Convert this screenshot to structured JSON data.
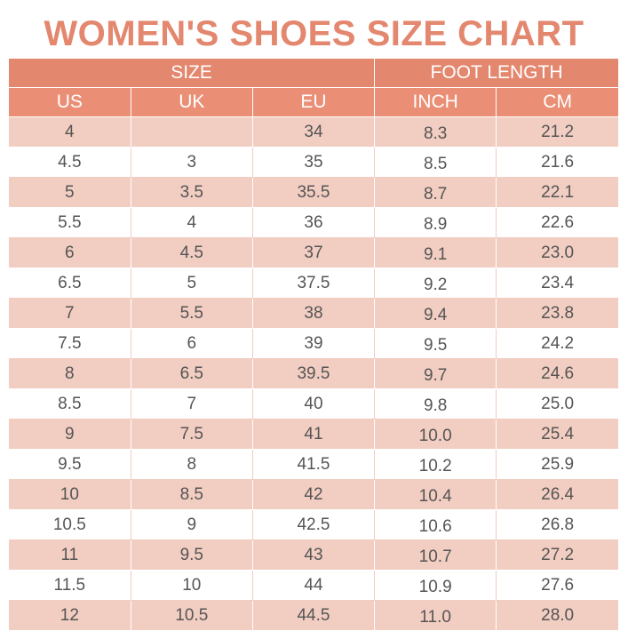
{
  "title": "WOMEN'S SHOES SIZE CHART",
  "colors": {
    "title": "#e3876e",
    "header_top": "#e3876e",
    "header_cols": "#ea8f76",
    "row_shaded": "#f2cdc1",
    "row_plain": "#ffffff",
    "cell_text": "#555555"
  },
  "groups": {
    "size": "SIZE",
    "foot_length": "FOOT LENGTH"
  },
  "columns": {
    "us": "US",
    "uk": "UK",
    "eu": "EU",
    "inch": "INCH",
    "cm": "CM"
  },
  "rows": [
    {
      "us": "4",
      "uk": "",
      "eu": "34",
      "inch": "8.3",
      "cm": "21.2"
    },
    {
      "us": "4.5",
      "uk": "3",
      "eu": "35",
      "inch": "8.5",
      "cm": "21.6"
    },
    {
      "us": "5",
      "uk": "3.5",
      "eu": "35.5",
      "inch": "8.7",
      "cm": "22.1"
    },
    {
      "us": "5.5",
      "uk": "4",
      "eu": "36",
      "inch": "8.9",
      "cm": "22.6"
    },
    {
      "us": "6",
      "uk": "4.5",
      "eu": "37",
      "inch": "9.1",
      "cm": "23.0"
    },
    {
      "us": "6.5",
      "uk": "5",
      "eu": "37.5",
      "inch": "9.2",
      "cm": "23.4"
    },
    {
      "us": "7",
      "uk": "5.5",
      "eu": "38",
      "inch": "9.4",
      "cm": "23.8"
    },
    {
      "us": "7.5",
      "uk": "6",
      "eu": "39",
      "inch": "9.5",
      "cm": "24.2"
    },
    {
      "us": "8",
      "uk": "6.5",
      "eu": "39.5",
      "inch": "9.7",
      "cm": "24.6"
    },
    {
      "us": "8.5",
      "uk": "7",
      "eu": "40",
      "inch": "9.8",
      "cm": "25.0"
    },
    {
      "us": "9",
      "uk": "7.5",
      "eu": "41",
      "inch": "10.0",
      "cm": "25.4"
    },
    {
      "us": "9.5",
      "uk": "8",
      "eu": "41.5",
      "inch": "10.2",
      "cm": "25.9"
    },
    {
      "us": "10",
      "uk": "8.5",
      "eu": "42",
      "inch": "10.4",
      "cm": "26.4"
    },
    {
      "us": "10.5",
      "uk": "9",
      "eu": "42.5",
      "inch": "10.6",
      "cm": "26.8"
    },
    {
      "us": "11",
      "uk": "9.5",
      "eu": "43",
      "inch": "10.7",
      "cm": "27.2"
    },
    {
      "us": "11.5",
      "uk": "10",
      "eu": "44",
      "inch": "10.9",
      "cm": "27.6"
    },
    {
      "us": "12",
      "uk": "10.5",
      "eu": "44.5",
      "inch": "11.0",
      "cm": "28.0"
    }
  ]
}
